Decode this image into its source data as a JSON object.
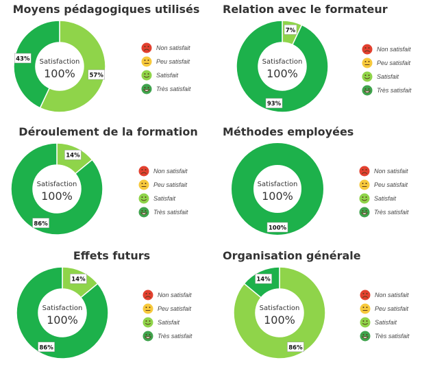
{
  "colors": {
    "tres_satisfait": "#1db14b",
    "satisfait": "#8fd44a",
    "peu_satisfait": "#f7c93c",
    "non_satisfait": "#e2402f",
    "label_bg": "#ffffff",
    "label_text": "#111111"
  },
  "legend": {
    "items": [
      {
        "label": "Non satisfait",
        "icon": "sad-face-icon",
        "color": "#e2402f"
      },
      {
        "label": "Peu satisfait",
        "icon": "neutral-face-icon",
        "color": "#f7c93c"
      },
      {
        "label": "Satisfait",
        "icon": "smile-face-icon",
        "color": "#8fd44a"
      },
      {
        "label": "Très satisfait",
        "icon": "grin-face-icon",
        "color": "#3fa34d"
      }
    ]
  },
  "chart_data": [
    {
      "type": "pie",
      "title": "Moyens pédagogiques utilisés",
      "center_label": "Satisfaction",
      "center_value": "100%",
      "categories": [
        "Non satisfait",
        "Peu satisfait",
        "Satisfait",
        "Très satisfait"
      ],
      "values": [
        0,
        0,
        57,
        43
      ],
      "data_labels": [
        "",
        "",
        "57%",
        "43%"
      ]
    },
    {
      "type": "pie",
      "title": "Relation avec le formateur",
      "center_label": "Satisfaction",
      "center_value": "100%",
      "categories": [
        "Non satisfait",
        "Peu satisfait",
        "Satisfait",
        "Très satisfait"
      ],
      "values": [
        0,
        0,
        7,
        93
      ],
      "data_labels": [
        "",
        "",
        "7%",
        "93%"
      ]
    },
    {
      "type": "pie",
      "title": "Déroulement de la formation",
      "center_label": "Satisfaction",
      "center_value": "100%",
      "categories": [
        "Non satisfait",
        "Peu satisfait",
        "Satisfait",
        "Très satisfait"
      ],
      "values": [
        0,
        0,
        14,
        86
      ],
      "data_labels": [
        "",
        "",
        "14%",
        "86%"
      ]
    },
    {
      "type": "pie",
      "title": "Méthodes employées",
      "center_label": "Satisfaction",
      "center_value": "100%",
      "categories": [
        "Non satisfait",
        "Peu satisfait",
        "Satisfait",
        "Très satisfait"
      ],
      "values": [
        0,
        0,
        0,
        100
      ],
      "data_labels": [
        "",
        "",
        "",
        "100%"
      ]
    },
    {
      "type": "pie",
      "title": "Effets futurs",
      "center_label": "Satisfaction",
      "center_value": "100%",
      "categories": [
        "Non satisfait",
        "Peu satisfait",
        "Satisfait",
        "Très satisfait"
      ],
      "values": [
        0,
        0,
        14,
        86
      ],
      "data_labels": [
        "",
        "",
        "14%",
        "86%"
      ]
    },
    {
      "type": "pie",
      "title": "Organisation générale",
      "center_label": "Satisfaction",
      "center_value": "100%",
      "categories": [
        "Non satisfait",
        "Peu satisfait",
        "Satisfait",
        "Très satisfait"
      ],
      "values": [
        0,
        0,
        86,
        14
      ],
      "data_labels": [
        "",
        "",
        "86%",
        "14%"
      ]
    }
  ]
}
